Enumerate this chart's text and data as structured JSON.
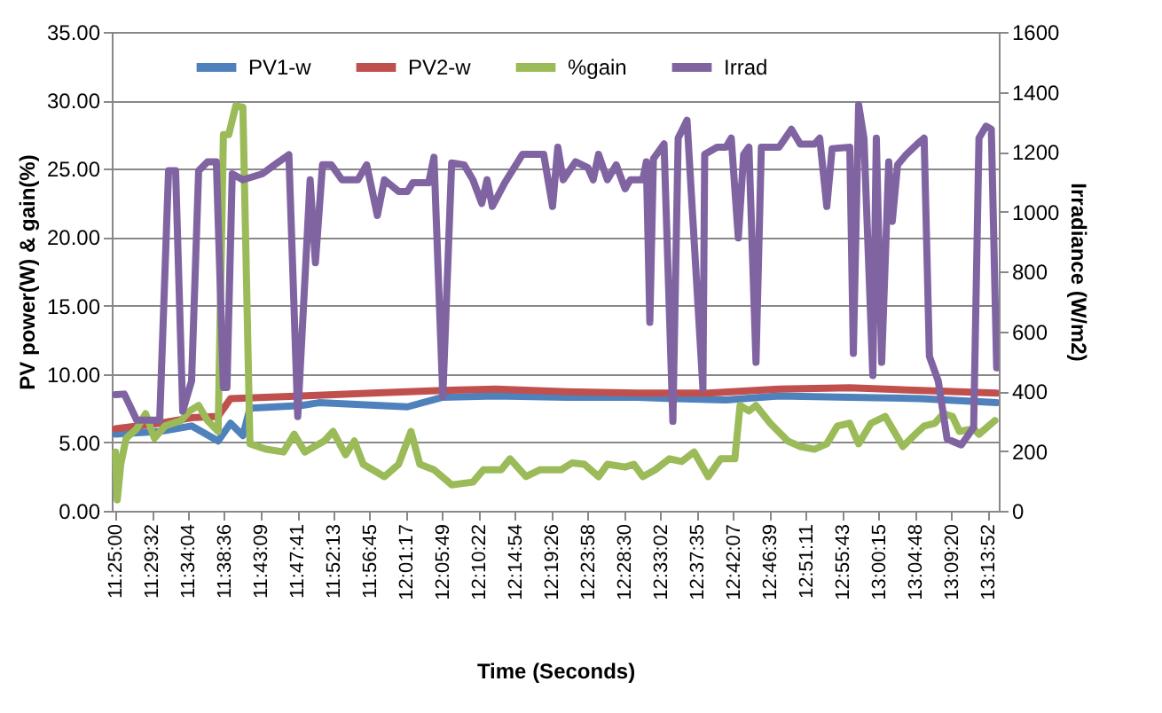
{
  "chart_data": {
    "type": "line",
    "xlabel": "Time (Seconds)",
    "ylabel": "PV power(W) & gain(%)",
    "y2label": "Irradiance (W/m2)",
    "xlim": [
      11.409,
      13.254
    ],
    "xticks": [
      {
        "value": 11.4167,
        "label": "11:25:00"
      },
      {
        "value": 11.4922,
        "label": "11:29:32"
      },
      {
        "value": 11.5678,
        "label": "11:34:04"
      },
      {
        "value": 11.6433,
        "label": "11:38:36"
      },
      {
        "value": 11.7192,
        "label": "11:43:09"
      },
      {
        "value": 11.7947,
        "label": "11:47:41"
      },
      {
        "value": 11.8703,
        "label": "11:52:13"
      },
      {
        "value": 11.9458,
        "label": "11:56:45"
      },
      {
        "value": 12.0214,
        "label": "12:01:17"
      },
      {
        "value": 12.0969,
        "label": "12:05:49"
      },
      {
        "value": 12.1728,
        "label": "12:10:22"
      },
      {
        "value": 12.2483,
        "label": "12:14:54"
      },
      {
        "value": 12.3239,
        "label": "12:19:26"
      },
      {
        "value": 12.3994,
        "label": "12:23:58"
      },
      {
        "value": 12.475,
        "label": "12:28:30"
      },
      {
        "value": 12.5506,
        "label": "12:33:02"
      },
      {
        "value": 12.6264,
        "label": "12:37:35"
      },
      {
        "value": 12.7019,
        "label": "12:42:07"
      },
      {
        "value": 12.7775,
        "label": "12:46:39"
      },
      {
        "value": 12.8531,
        "label": "12:51:11"
      },
      {
        "value": 12.9286,
        "label": "12:55:43"
      },
      {
        "value": 13.0042,
        "label": "13:00:15"
      },
      {
        "value": 13.08,
        "label": "13:04:48"
      },
      {
        "value": 13.1556,
        "label": "13:09:20"
      },
      {
        "value": 13.2311,
        "label": "13:13:52"
      }
    ],
    "ylim": [
      0,
      35
    ],
    "yticks": [
      {
        "value": 0,
        "label": "0.00"
      },
      {
        "value": 5,
        "label": "5.00"
      },
      {
        "value": 10,
        "label": "10.00"
      },
      {
        "value": 15,
        "label": "15.00"
      },
      {
        "value": 20,
        "label": "20.00"
      },
      {
        "value": 25,
        "label": "25.00"
      },
      {
        "value": 30,
        "label": "30.00"
      },
      {
        "value": 35,
        "label": "35.00"
      }
    ],
    "y2lim": [
      0,
      1600
    ],
    "y2ticks": [
      0,
      200,
      400,
      600,
      800,
      1000,
      1200,
      1400,
      1600
    ],
    "grid": "y",
    "legend": "top",
    "series": [
      {
        "name": "PV1-w",
        "color": "#4f81bd",
        "x": [
          11.4167,
          11.5087,
          11.575,
          11.6302,
          11.656,
          11.6817,
          11.6964,
          11.8032,
          11.84,
          12.024,
          12.0976,
          12.208,
          12.3552,
          12.5024,
          12.5761,
          12.6865,
          12.7969,
          12.9441,
          13.0913,
          13.2496
        ],
        "values": [
          5.6,
          5.8,
          6.2,
          5.1,
          6.4,
          5.5,
          7.5,
          7.7,
          7.9,
          7.6,
          8.3,
          8.4,
          8.3,
          8.3,
          8.2,
          8.1,
          8.4,
          8.3,
          8.2,
          7.9
        ]
      },
      {
        "name": "PV2-w",
        "color": "#c0504d",
        "x": [
          11.4167,
          11.5087,
          11.575,
          11.6302,
          11.656,
          11.8032,
          11.9504,
          12.0976,
          12.208,
          12.3552,
          12.5024,
          12.6497,
          12.7969,
          12.9441,
          13.0913,
          13.2496
        ],
        "values": [
          6.0,
          6.4,
          6.8,
          6.9,
          8.2,
          8.4,
          8.6,
          8.8,
          8.9,
          8.7,
          8.6,
          8.6,
          8.9,
          9.0,
          8.8,
          8.6
        ]
      },
      {
        "name": "%gain",
        "color": "#9bbb59",
        "x": [
          11.4167,
          11.4204,
          11.4277,
          11.4388,
          11.4609,
          11.4793,
          11.4977,
          11.5198,
          11.5529,
          11.5713,
          11.5897,
          11.6081,
          11.6302,
          11.6412,
          11.6523,
          11.667,
          11.6817,
          11.6964,
          11.7295,
          11.7663,
          11.7884,
          11.8105,
          11.851,
          11.8694,
          11.8952,
          11.9136,
          11.932,
          11.9761,
          12.0056,
          12.0314,
          12.0498,
          12.0792,
          12.116,
          12.1602,
          12.1822,
          12.219,
          12.2374,
          12.2706,
          12.3,
          12.3442,
          12.3663,
          12.392,
          12.4215,
          12.4399,
          12.4767,
          12.4951,
          12.5135,
          12.5393,
          12.5687,
          12.5945,
          12.6202,
          12.6497,
          12.6755,
          12.7049,
          12.7159,
          12.7343,
          12.749,
          12.7785,
          12.8153,
          12.8411,
          12.8705,
          12.8963,
          12.9183,
          12.9441,
          12.9625,
          12.9883,
          13.0177,
          13.0545,
          13.0803,
          13.0987,
          13.1208,
          13.1392,
          13.1576,
          13.1723,
          13.2017,
          13.2128,
          13.2459
        ],
        "values": [
          4.3,
          0.8,
          3.4,
          5.3,
          6.0,
          7.1,
          5.3,
          6.2,
          6.6,
          7.3,
          7.7,
          6.6,
          5.8,
          27.5,
          27.5,
          29.6,
          29.5,
          4.9,
          4.5,
          4.3,
          5.6,
          4.3,
          5.1,
          5.8,
          4.1,
          5.1,
          3.4,
          2.5,
          3.4,
          5.8,
          3.4,
          3.0,
          1.9,
          2.1,
          3.0,
          3.0,
          3.8,
          2.5,
          3.0,
          3.0,
          3.5,
          3.4,
          2.5,
          3.4,
          3.2,
          3.4,
          2.5,
          3.0,
          3.8,
          3.6,
          4.3,
          2.5,
          3.8,
          3.8,
          7.7,
          7.3,
          7.7,
          6.4,
          5.1,
          4.7,
          4.5,
          4.9,
          6.2,
          6.4,
          4.9,
          6.4,
          6.9,
          4.7,
          5.6,
          6.2,
          6.4,
          7.1,
          6.9,
          5.8,
          6.0,
          5.6,
          6.6
        ]
      },
      {
        "name": "Irrad",
        "color": "#8064a2",
        "axis": "y2",
        "x": [
          11.4167,
          11.4351,
          11.4609,
          11.5087,
          11.5271,
          11.5418,
          11.5566,
          11.575,
          11.5897,
          11.6081,
          11.6265,
          11.6412,
          11.6486,
          11.6596,
          11.6817,
          11.7222,
          11.7479,
          11.7774,
          11.7958,
          11.8216,
          11.8326,
          11.8473,
          11.8657,
          11.8878,
          11.9209,
          11.9393,
          11.9614,
          11.9761,
          12.0056,
          12.024,
          12.035,
          12.0681,
          12.0792,
          12.0976,
          12.116,
          12.1418,
          12.1602,
          12.1786,
          12.1896,
          12.2006,
          12.2264,
          12.2632,
          12.3074,
          12.3258,
          12.3368,
          12.3479,
          12.3736,
          12.3994,
          12.4104,
          12.4215,
          12.4399,
          12.4583,
          12.4767,
          12.4877,
          12.5135,
          12.5209,
          12.5282,
          12.5356,
          12.5577,
          12.5761,
          12.5871,
          12.6055,
          12.6386,
          12.6423,
          12.6681,
          12.6865,
          12.6975,
          12.7122,
          12.7233,
          12.7343,
          12.749,
          12.7601,
          12.7969,
          12.8227,
          12.8411,
          12.8705,
          12.8815,
          12.8963,
          12.9073,
          12.9441,
          12.9515,
          12.9625,
          12.9736,
          12.992,
          12.9993,
          13.0104,
          13.0251,
          13.0324,
          13.0435,
          13.0619,
          13.084,
          13.0987,
          13.1097,
          13.1281,
          13.1465,
          13.176,
          13.2017,
          13.2128,
          13.2275,
          13.2385,
          13.2496
        ],
        "values": [
          388,
          390,
          303,
          303,
          1136,
          1136,
          333,
          434,
          1136,
          1166,
          1166,
          412,
          412,
          1126,
          1106,
          1126,
          1156,
          1190,
          315,
          1106,
          829,
          1156,
          1156,
          1106,
          1106,
          1156,
          987,
          1106,
          1067,
          1067,
          1096,
          1096,
          1181,
          382,
          1162,
          1156,
          1106,
          1027,
          1106,
          1017,
          1096,
          1191,
          1191,
          1017,
          1215,
          1106,
          1166,
          1146,
          1106,
          1191,
          1106,
          1156,
          1076,
          1106,
          1106,
          1166,
          630,
          1176,
          1226,
          299,
          1245,
          1305,
          408,
          1191,
          1215,
          1215,
          1245,
          912,
          1191,
          1215,
          496,
          1215,
          1215,
          1275,
          1225,
          1225,
          1245,
          1017,
          1210,
          1215,
          526,
          1357,
          1245,
          452,
          1245,
          496,
          1166,
          967,
          1156,
          1191,
          1225,
          1245,
          516,
          434,
          240,
          220,
          279,
          1245,
          1285,
          1275,
          478
        ]
      }
    ]
  }
}
